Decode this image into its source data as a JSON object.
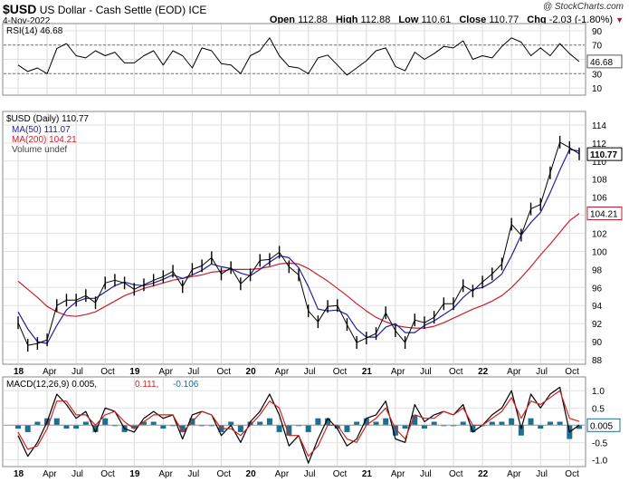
{
  "header": {
    "symbol": "$USD",
    "name": "US Dollar - Cash Settle (EOD)",
    "exchange": "ICE",
    "date": "4-Nov-2022",
    "copyright": "@ StockCharts.com",
    "open_label": "Open",
    "open": "112.88",
    "high_label": "High",
    "high": "112.88",
    "low_label": "Low",
    "low": "110.61",
    "close_label": "Close",
    "close": "110.77",
    "chg_label": "Chg",
    "chg": "-2.03 (-1.80%)"
  },
  "colors": {
    "price": "#000000",
    "ma50": "#1f1f9e",
    "ma200": "#cc1f2f",
    "macd": "#000000",
    "signal": "#d32323",
    "hist": "#1f6f8f",
    "down": "#9b1c3c"
  },
  "chart_data": [
    {
      "type": "line",
      "title": "RSI(14) 46.68",
      "legend": "RSI(14) 46.68",
      "yticks": [
        90,
        70,
        50,
        30,
        10
      ],
      "ylim": [
        0,
        100
      ],
      "levels": [
        70,
        30
      ],
      "current_label": "46.68",
      "x": [
        "2018-01",
        "2018-02",
        "2018-03",
        "2018-04",
        "2018-05",
        "2018-06",
        "2018-07",
        "2018-08",
        "2018-09",
        "2018-10",
        "2018-11",
        "2018-12",
        "2019-01",
        "2019-02",
        "2019-03",
        "2019-04",
        "2019-05",
        "2019-06",
        "2019-07",
        "2019-08",
        "2019-09",
        "2019-10",
        "2019-11",
        "2019-12",
        "2020-01",
        "2020-02",
        "2020-03",
        "2020-04",
        "2020-05",
        "2020-06",
        "2020-07",
        "2020-08",
        "2020-09",
        "2020-10",
        "2020-11",
        "2020-12",
        "2021-01",
        "2021-02",
        "2021-03",
        "2021-04",
        "2021-05",
        "2021-06",
        "2021-07",
        "2021-08",
        "2021-09",
        "2021-10",
        "2021-11",
        "2021-12",
        "2022-01",
        "2022-02",
        "2022-03",
        "2022-04",
        "2022-05",
        "2022-06",
        "2022-07",
        "2022-08",
        "2022-09",
        "2022-10",
        "2022-11"
      ],
      "values": [
        42,
        33,
        38,
        30,
        65,
        72,
        55,
        52,
        62,
        55,
        60,
        45,
        45,
        55,
        62,
        42,
        62,
        55,
        38,
        66,
        62,
        44,
        42,
        30,
        55,
        62,
        80,
        55,
        40,
        38,
        30,
        52,
        56,
        42,
        28,
        38,
        48,
        62,
        66,
        40,
        34,
        60,
        50,
        58,
        68,
        66,
        76,
        50,
        55,
        52,
        68,
        80,
        74,
        55,
        66,
        55,
        72,
        58,
        47
      ]
    },
    {
      "type": "line",
      "title": "$USD (Daily) 110.77",
      "legend": [
        "$USD (Daily) 110.77",
        "MA(50) 111.07",
        "MA(200) 104.21",
        "Volume undef"
      ],
      "x_tick_labels": [
        "18",
        "Apr",
        "Jul",
        "Oct",
        "19",
        "Apr",
        "Jul",
        "Oct",
        "20",
        "Apr",
        "Jul",
        "Oct",
        "21",
        "Apr",
        "Jul",
        "Oct",
        "22",
        "Apr",
        "Jul",
        "Oct"
      ],
      "yticks": [
        114,
        112,
        110,
        108,
        106,
        104,
        102,
        100,
        98,
        96,
        94,
        92,
        90,
        88
      ],
      "ylim": [
        87.5,
        115.5
      ],
      "price_label": "110.77",
      "ma200_label": "104.21",
      "x": [
        "2018-01",
        "2018-02",
        "2018-03",
        "2018-04",
        "2018-05",
        "2018-06",
        "2018-07",
        "2018-08",
        "2018-09",
        "2018-10",
        "2018-11",
        "2018-12",
        "2019-01",
        "2019-02",
        "2019-03",
        "2019-04",
        "2019-05",
        "2019-06",
        "2019-07",
        "2019-08",
        "2019-09",
        "2019-10",
        "2019-11",
        "2019-12",
        "2020-01",
        "2020-02",
        "2020-03",
        "2020-04",
        "2020-05",
        "2020-06",
        "2020-07",
        "2020-08",
        "2020-09",
        "2020-10",
        "2020-11",
        "2020-12",
        "2021-01",
        "2021-02",
        "2021-03",
        "2021-04",
        "2021-05",
        "2021-06",
        "2021-07",
        "2021-08",
        "2021-09",
        "2021-10",
        "2021-11",
        "2021-12",
        "2022-01",
        "2022-02",
        "2022-03",
        "2022-04",
        "2022-05",
        "2022-06",
        "2022-07",
        "2022-08",
        "2022-09",
        "2022-10",
        "2022-11"
      ],
      "series": [
        {
          "name": "$USD (Daily) 110.77",
          "values": [
            92.1,
            89.6,
            89.8,
            90.2,
            94.0,
            94.6,
            94.6,
            95.1,
            94.3,
            96.5,
            96.8,
            96.5,
            95.8,
            96.3,
            96.8,
            97.2,
            97.8,
            96.1,
            98.0,
            98.4,
            99.3,
            97.5,
            98.2,
            96.4,
            97.4,
            99.0,
            99.1,
            99.9,
            98.3,
            97.4,
            93.4,
            92.2,
            93.9,
            94.0,
            91.9,
            89.9,
            90.4,
            90.9,
            93.2,
            91.2,
            89.9,
            92.4,
            92.1,
            92.7,
            94.2,
            94.2,
            96.2,
            95.6,
            96.6,
            97.5,
            98.6,
            103.0,
            101.8,
            104.7,
            105.2,
            108.7,
            112.1,
            111.5,
            110.8
          ]
        },
        {
          "name": "MA(50) 111.07",
          "values": [
            93.3,
            91.4,
            90.0,
            89.8,
            91.8,
            93.5,
            94.4,
            94.8,
            94.8,
            95.5,
            96.2,
            96.6,
            96.3,
            96.2,
            96.5,
            96.9,
            97.4,
            97.0,
            97.4,
            97.9,
            98.6,
            98.3,
            98.1,
            97.6,
            97.3,
            98.0,
            98.8,
            99.5,
            99.3,
            98.2,
            96.1,
            93.6,
            93.4,
            93.5,
            93.0,
            91.4,
            90.5,
            90.5,
            91.6,
            92.0,
            91.0,
            91.0,
            91.8,
            92.3,
            93.0,
            93.7,
            94.9,
            95.8,
            96.0,
            96.6,
            97.5,
            99.5,
            101.8,
            103.2,
            104.3,
            106.5,
            109.0,
            111.3,
            111.1
          ]
        },
        {
          "name": "MA(200) 104.21",
          "values": [
            96.7,
            95.8,
            94.9,
            93.9,
            93.3,
            92.9,
            92.8,
            93.0,
            93.3,
            93.9,
            94.5,
            95.1,
            95.5,
            95.9,
            96.2,
            96.5,
            96.8,
            97.0,
            97.2,
            97.4,
            97.7,
            97.8,
            98.0,
            98.0,
            98.0,
            98.1,
            98.3,
            98.6,
            98.7,
            98.6,
            98.1,
            97.4,
            96.7,
            95.9,
            95.1,
            94.2,
            93.4,
            92.7,
            92.2,
            91.8,
            91.6,
            91.5,
            91.5,
            91.7,
            92.1,
            92.6,
            93.1,
            93.6,
            94.0,
            94.5,
            95.1,
            96.0,
            97.1,
            98.3,
            99.6,
            100.8,
            102.1,
            103.4,
            104.2
          ]
        }
      ]
    },
    {
      "type": "line",
      "title": "MACD(12,26,9) 0.005, 0.111, -0.106",
      "legend": [
        "MACD(12,26,9) 0.005,",
        "0.111,",
        "-0.106"
      ],
      "yticks": [
        1.0,
        0.5,
        0.0,
        -0.5,
        -1.0
      ],
      "ylim": [
        -1.2,
        1.4
      ],
      "current_label": "0.005",
      "x_tick_labels": [
        "18",
        "Apr",
        "Jul",
        "Oct",
        "19",
        "Apr",
        "Jul",
        "Oct",
        "20",
        "Apr",
        "Jul",
        "Oct",
        "21",
        "Apr",
        "Jul",
        "Oct",
        "22",
        "Apr",
        "Jul",
        "Oct"
      ],
      "x": [
        "2018-01",
        "2018-02",
        "2018-03",
        "2018-04",
        "2018-05",
        "2018-06",
        "2018-07",
        "2018-08",
        "2018-09",
        "2018-10",
        "2018-11",
        "2018-12",
        "2019-01",
        "2019-02",
        "2019-03",
        "2019-04",
        "2019-05",
        "2019-06",
        "2019-07",
        "2019-08",
        "2019-09",
        "2019-10",
        "2019-11",
        "2019-12",
        "2020-01",
        "2020-02",
        "2020-03",
        "2020-04",
        "2020-05",
        "2020-06",
        "2020-07",
        "2020-08",
        "2020-09",
        "2020-10",
        "2020-11",
        "2020-12",
        "2021-01",
        "2021-02",
        "2021-03",
        "2021-04",
        "2021-05",
        "2021-06",
        "2021-07",
        "2021-08",
        "2021-09",
        "2021-10",
        "2021-11",
        "2021-12",
        "2022-01",
        "2022-02",
        "2022-03",
        "2022-04",
        "2022-05",
        "2022-06",
        "2022-07",
        "2022-08",
        "2022-09",
        "2022-10",
        "2022-11"
      ],
      "series": [
        {
          "name": "MACD",
          "values": [
            -0.3,
            -0.9,
            -0.5,
            0.1,
            0.9,
            0.6,
            0.2,
            0.4,
            -0.2,
            0.5,
            0.4,
            -0.1,
            -0.2,
            0.2,
            0.4,
            0.2,
            0.3,
            -0.4,
            0.3,
            0.4,
            0.3,
            -0.3,
            0.0,
            -0.5,
            0.1,
            0.4,
            0.9,
            0.3,
            -0.6,
            -0.3,
            -1.1,
            -0.4,
            0.2,
            -0.1,
            -0.6,
            -0.4,
            0.2,
            0.3,
            0.7,
            -0.4,
            -0.5,
            0.6,
            0.1,
            0.3,
            0.4,
            0.3,
            0.6,
            -0.2,
            0.0,
            0.3,
            0.5,
            1.0,
            -0.1,
            0.9,
            0.5,
            0.9,
            1.1,
            -0.2,
            0.005
          ]
        },
        {
          "name": "Signal",
          "values": [
            -0.2,
            -0.7,
            -0.6,
            -0.1,
            0.7,
            0.7,
            0.3,
            0.3,
            0.0,
            0.3,
            0.4,
            0.1,
            -0.1,
            0.1,
            0.3,
            0.3,
            0.3,
            -0.2,
            0.1,
            0.4,
            0.3,
            -0.1,
            -0.1,
            -0.3,
            0.0,
            0.3,
            0.7,
            0.5,
            -0.3,
            -0.3,
            -0.9,
            -0.6,
            0.0,
            0.0,
            -0.4,
            -0.5,
            0.0,
            0.2,
            0.5,
            -0.1,
            -0.4,
            0.3,
            0.2,
            0.2,
            0.4,
            0.3,
            0.5,
            0.0,
            0.0,
            0.2,
            0.4,
            0.8,
            0.2,
            0.7,
            0.6,
            0.8,
            1.0,
            0.2,
            0.111
          ]
        }
      ]
    }
  ]
}
